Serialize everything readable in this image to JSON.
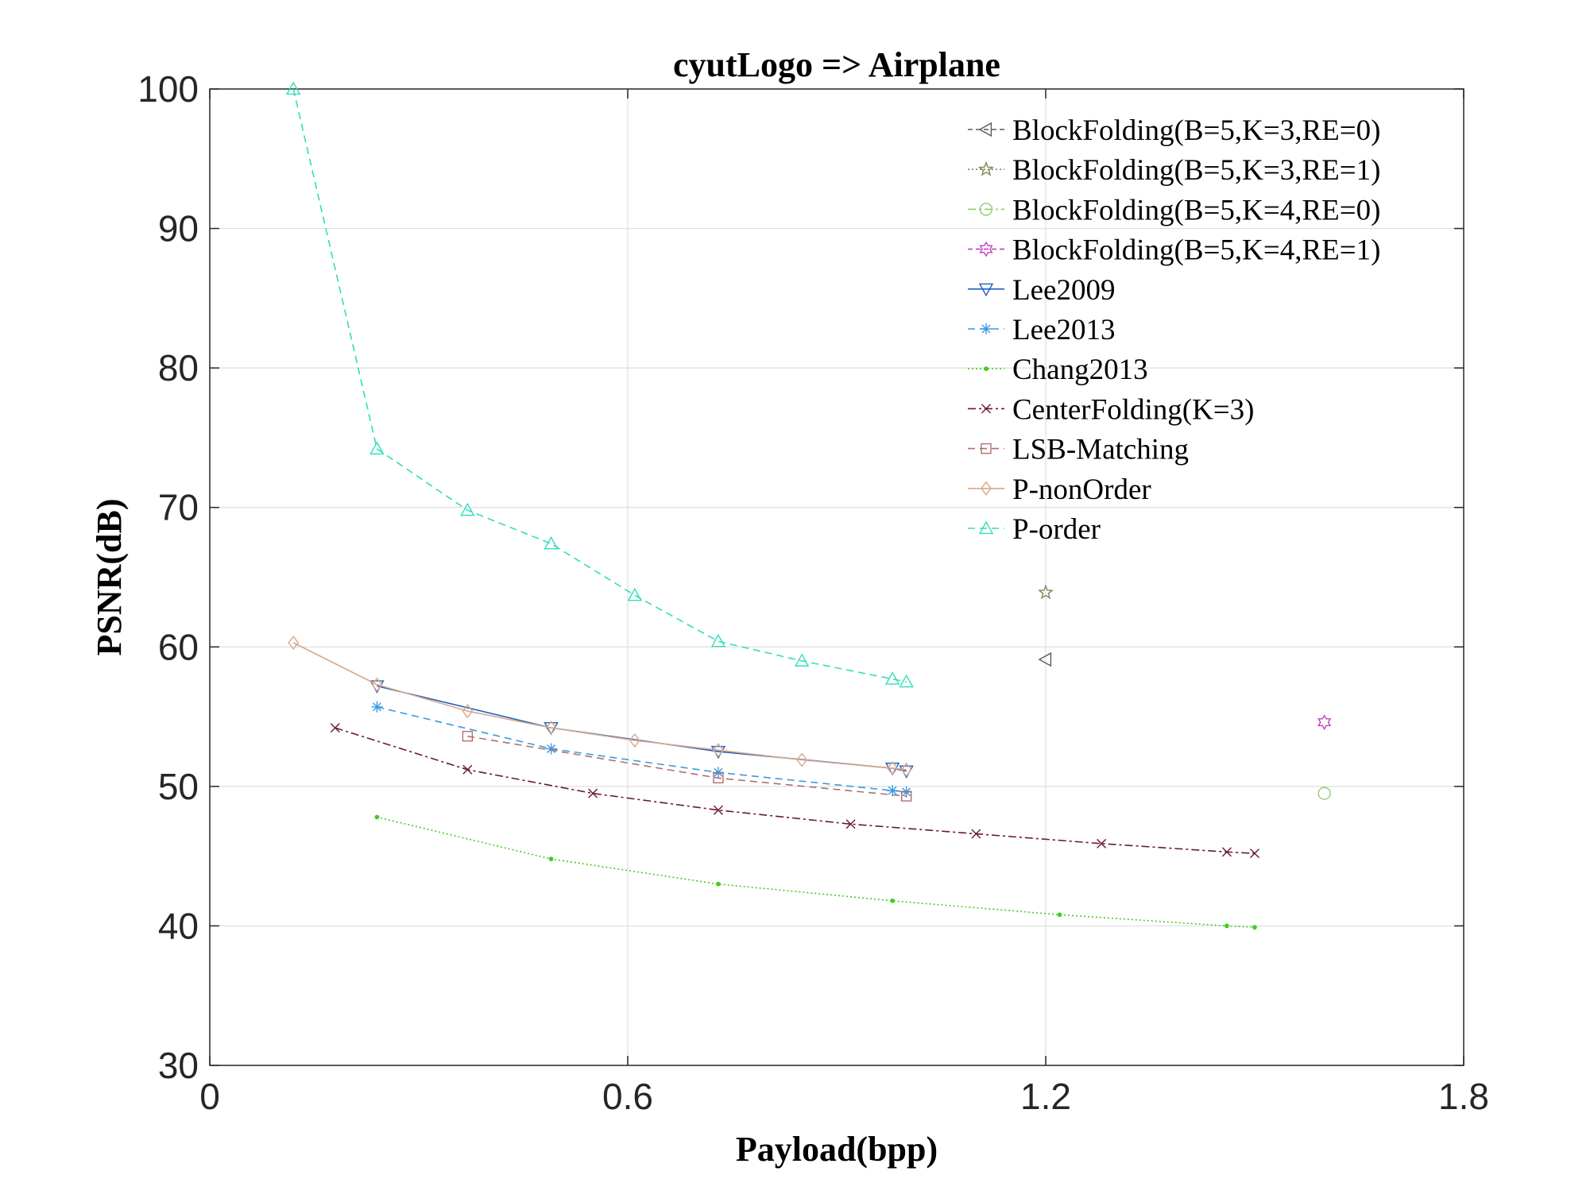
{
  "chart_data": {
    "type": "line",
    "title": "cyutLogo => Airplane",
    "xlabel": "Payload(bpp)",
    "ylabel": "PSNR(dB)",
    "xlim": [
      0,
      1.8
    ],
    "ylim": [
      30,
      100
    ],
    "xticks": [
      0,
      0.6,
      1.2,
      1.8
    ],
    "xtick_labels": [
      "0",
      "0.6",
      "1.2",
      "1.8"
    ],
    "yticks": [
      30,
      40,
      50,
      60,
      70,
      80,
      90,
      100
    ],
    "ytick_labels": [
      "30",
      "40",
      "50",
      "60",
      "70",
      "80",
      "90",
      "100"
    ],
    "grid": true,
    "legend_position": "top-right",
    "series": [
      {
        "name": "BlockFolding(B=5,K=3,RE=0)",
        "color": "#5a5a5a",
        "dash": "6,4",
        "marker": "triangle-left",
        "x": [
          1.2
        ],
        "y": [
          59.1
        ]
      },
      {
        "name": "BlockFolding(B=5,K=3,RE=1)",
        "color": "#7b8a55",
        "dash": "2,3",
        "marker": "star",
        "x": [
          1.2
        ],
        "y": [
          63.9
        ]
      },
      {
        "name": "BlockFolding(B=5,K=4,RE=0)",
        "color": "#8fcc6a",
        "dash": "10,4,3,4",
        "marker": "circle",
        "x": [
          1.6
        ],
        "y": [
          49.5
        ]
      },
      {
        "name": "BlockFolding(B=5,K=4,RE=1)",
        "color": "#c23fbf",
        "dash": "6,4",
        "marker": "hexagram",
        "x": [
          1.6
        ],
        "y": [
          54.6
        ]
      },
      {
        "name": "Lee2009",
        "color": "#1f5fbf",
        "dash": "",
        "marker": "triangle-down",
        "x": [
          0.24,
          0.49,
          0.73,
          0.98,
          1.0
        ],
        "y": [
          57.2,
          54.2,
          52.5,
          51.3,
          51.1
        ]
      },
      {
        "name": "Lee2013",
        "color": "#3a9be0",
        "dash": "9,6",
        "marker": "asterisk",
        "x": [
          0.24,
          0.49,
          0.73,
          0.98,
          1.0
        ],
        "y": [
          55.7,
          52.7,
          51.0,
          49.7,
          49.6
        ]
      },
      {
        "name": "Chang2013",
        "color": "#44cc22",
        "dash": "2,3",
        "marker": "dot",
        "x": [
          0.24,
          0.49,
          0.73,
          0.98,
          1.22,
          1.46,
          1.5
        ],
        "y": [
          47.8,
          44.8,
          43.0,
          41.8,
          40.8,
          40.0,
          39.9
        ]
      },
      {
        "name": "CenterFolding(K=3)",
        "color": "#6a1a2e",
        "dash": "10,4,3,4",
        "marker": "x",
        "x": [
          0.18,
          0.37,
          0.55,
          0.73,
          0.92,
          1.1,
          1.28,
          1.46,
          1.5
        ],
        "y": [
          54.2,
          51.2,
          49.5,
          48.3,
          47.3,
          46.6,
          45.9,
          45.3,
          45.2
        ]
      },
      {
        "name": "LSB-Matching",
        "color": "#b06e6e",
        "dash": "9,6",
        "marker": "square",
        "x": [
          0.37,
          0.73,
          1.0
        ],
        "y": [
          53.6,
          50.6,
          49.3
        ]
      },
      {
        "name": "P-nonOrder",
        "color": "#d9a889",
        "dash": "",
        "marker": "diamond",
        "x": [
          0.12,
          0.24,
          0.37,
          0.49,
          0.61,
          0.73,
          0.85,
          0.98,
          1.0
        ],
        "y": [
          60.3,
          57.3,
          55.4,
          54.2,
          53.3,
          52.6,
          51.9,
          51.3,
          51.2
        ]
      },
      {
        "name": "P-order",
        "color": "#33ddbb",
        "dash": "9,6",
        "marker": "triangle-up",
        "x": [
          0.12,
          0.24,
          0.37,
          0.49,
          0.61,
          0.73,
          0.85,
          0.98,
          1.0
        ],
        "y": [
          100,
          74.2,
          69.8,
          67.4,
          63.7,
          60.4,
          59.0,
          57.7,
          57.5
        ]
      }
    ]
  }
}
